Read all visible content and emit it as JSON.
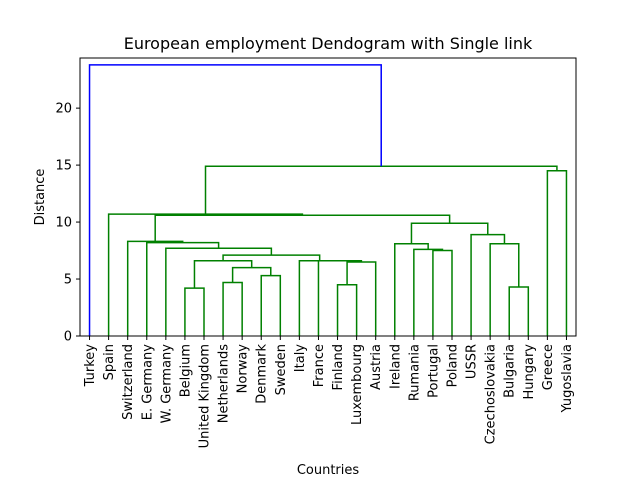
{
  "chart_data": {
    "type": "dendrogram",
    "title": "European employment Dendogram with Single link",
    "xlabel": "Countries",
    "ylabel": "Distance",
    "ylim": [
      0,
      24.4
    ],
    "yticks": [
      0,
      5,
      10,
      15,
      20
    ],
    "grid": false,
    "leaves": [
      "Turkey",
      "Spain",
      "Switzerland",
      "E. Germany",
      "W. Germany",
      "Belgium",
      "United Kingdom",
      "Netherlands",
      "Norway",
      "Denmark",
      "Sweden",
      "Italy",
      "France",
      "Finland",
      "Luxembourg",
      "Austria",
      "Ireland",
      "Rumania",
      "Portugal",
      "Poland",
      "USSR",
      "Czechoslovakia",
      "Bulgaria",
      "Hungary",
      "Greece",
      "Yugoslavia"
    ],
    "merges": [
      {
        "left": "L5",
        "right": "L6",
        "distance": 4.2,
        "color": "#008000"
      },
      {
        "left": "L7",
        "right": "L8",
        "distance": 4.7,
        "color": "#008000"
      },
      {
        "left": "L9",
        "right": "L10",
        "distance": 5.3,
        "color": "#008000"
      },
      {
        "left": "M1",
        "right": "M2",
        "distance": 6.0,
        "color": "#008000"
      },
      {
        "left": "M0",
        "right": "M3",
        "distance": 6.6,
        "color": "#008000"
      },
      {
        "left": "L13",
        "right": "L14",
        "distance": 4.5,
        "color": "#008000"
      },
      {
        "left": "M5",
        "right": "L15",
        "distance": 6.5,
        "color": "#008000"
      },
      {
        "left": "L12",
        "right": "M6",
        "distance": 6.6,
        "color": "#008000"
      },
      {
        "left": "L11",
        "right": "M7",
        "distance": 6.6,
        "color": "#008000"
      },
      {
        "left": "M4",
        "right": "M8",
        "distance": 7.1,
        "color": "#008000"
      },
      {
        "left": "L4",
        "right": "M9",
        "distance": 7.7,
        "color": "#008000"
      },
      {
        "left": "L3",
        "right": "M10",
        "distance": 8.2,
        "color": "#008000"
      },
      {
        "left": "L2",
        "right": "M11",
        "distance": 8.3,
        "color": "#008000"
      },
      {
        "left": "L18",
        "right": "L19",
        "distance": 7.5,
        "color": "#008000"
      },
      {
        "left": "L17",
        "right": "M13",
        "distance": 7.6,
        "color": "#008000"
      },
      {
        "left": "L16",
        "right": "M14",
        "distance": 8.1,
        "color": "#008000"
      },
      {
        "left": "L22",
        "right": "L23",
        "distance": 4.3,
        "color": "#008000"
      },
      {
        "left": "L21",
        "right": "M16",
        "distance": 8.1,
        "color": "#008000"
      },
      {
        "left": "L20",
        "right": "M17",
        "distance": 8.9,
        "color": "#008000"
      },
      {
        "left": "M15",
        "right": "M18",
        "distance": 9.9,
        "color": "#008000"
      },
      {
        "left": "M12",
        "right": "M19",
        "distance": 10.6,
        "color": "#008000"
      },
      {
        "left": "L1",
        "right": "M20",
        "distance": 10.7,
        "color": "#008000"
      },
      {
        "left": "L24",
        "right": "L25",
        "distance": 14.5,
        "color": "#008000"
      },
      {
        "left": "M21",
        "right": "M22",
        "distance": 14.9,
        "color": "#008000"
      },
      {
        "left": "L0",
        "right": "M23",
        "distance": 23.8,
        "color": "#0000ff"
      }
    ]
  }
}
